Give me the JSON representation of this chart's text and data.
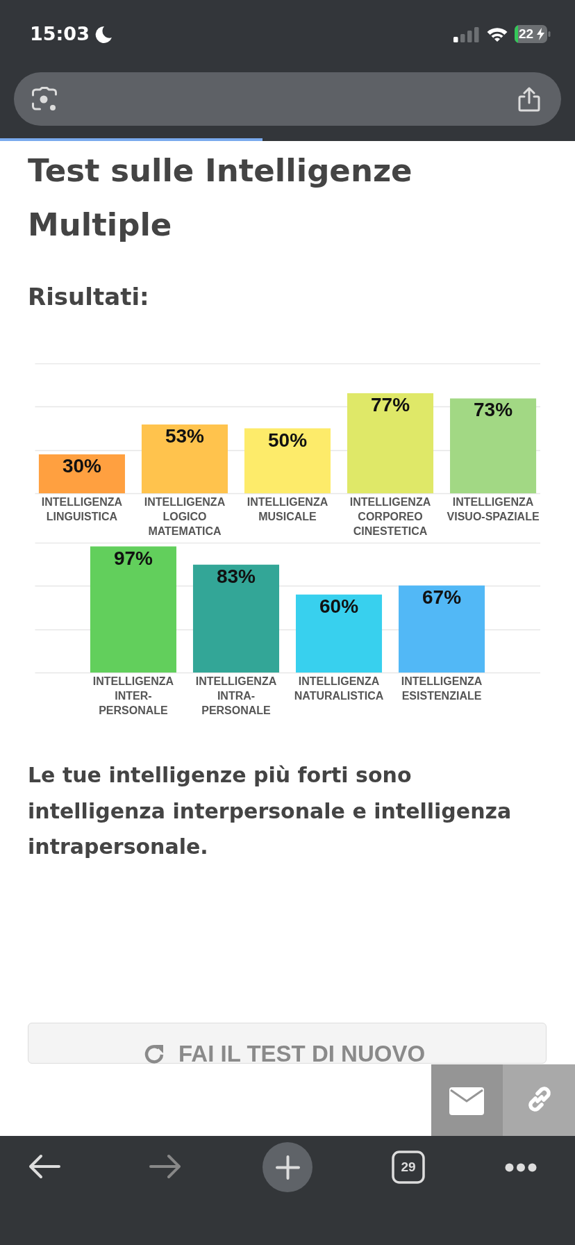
{
  "chart_data": [
    {
      "type": "bar",
      "title": "Test sulle Intelligenze Multiple",
      "subtitle": "Risultati:",
      "categories": [
        "INTELLIGENZA LINGUISTICA",
        "INTELLIGENZA LOGICO MATEMATICA",
        "INTELLIGENZA MUSICALE",
        "INTELLIGENZA CORPOREO CINESTETICA",
        "INTELLIGENZA VISUO-SPAZIALE"
      ],
      "values": [
        30,
        53,
        50,
        77,
        73
      ],
      "value_labels": [
        "30%",
        "53%",
        "50%",
        "77%",
        "73%"
      ],
      "colors": [
        "#ffa040",
        "#ffc34d",
        "#fdeb6a",
        "#dfe868",
        "#a2d884"
      ],
      "ylim": [
        0,
        100
      ],
      "yticks": [
        {
          "value": 0,
          "label": null
        },
        {
          "value": 33.3,
          "label": null
        },
        {
          "value": 66.7,
          "label": null
        },
        {
          "value": 100,
          "label": null
        }
      ],
      "grid": "y",
      "tick_labels": "x",
      "annotations": [
        "15:03",
        "22"
      ]
    },
    {
      "type": "bar",
      "categories": [
        "INTELLIGENZA INTER-PERSONALE",
        "INTELLIGENZA INTRA-PERSONALE",
        "INTELLIGENZA NATURALISTICA",
        "INTELLIGENZA ESISTENZIALE"
      ],
      "values": [
        97,
        83,
        60,
        67
      ],
      "value_labels": [
        "97%",
        "83%",
        "60%",
        "67%"
      ],
      "colors": [
        "#62cf5c",
        "#33a697",
        "#38d0ee",
        "#52b8f6"
      ],
      "ylim": [
        0,
        100
      ],
      "yticks": [
        {
          "value": 0,
          "label": null
        },
        {
          "value": 33.3,
          "label": null
        },
        {
          "value": 66.7,
          "label": null
        },
        {
          "value": 100,
          "label": null
        }
      ],
      "grid": "y",
      "tick_labels": "x",
      "annotations": [
        "Le tue intelligenze più forti sono intelligenza interpersonale e intelligenza intrapersonale.",
        "FAI IL TEST DI NUOVO",
        "29"
      ]
    }
  ]
}
